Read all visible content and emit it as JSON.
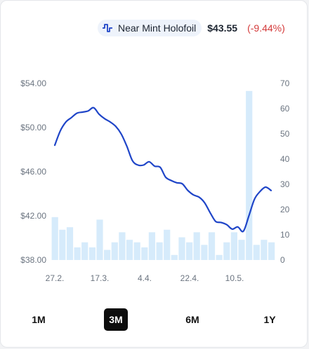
{
  "legend": {
    "icon": "activity-wave-icon",
    "label": "Near Mint Holofoil",
    "price": "$43.55",
    "change": "(-9.44%)",
    "change_color": "#d43a3a",
    "line_color": "#1f45c8"
  },
  "ranges": [
    {
      "label": "1M",
      "active": false
    },
    {
      "label": "3M",
      "active": true
    },
    {
      "label": "6M",
      "active": false
    },
    {
      "label": "1Y",
      "active": false
    }
  ],
  "chart_data": {
    "type": "line",
    "left_axis": {
      "ylim": [
        38,
        54
      ],
      "ticks": [
        "$38.00",
        "$42.00",
        "$46.00",
        "$50.00",
        "$54.00"
      ],
      "tick_values": [
        38,
        42,
        46,
        50,
        54
      ]
    },
    "right_axis": {
      "ylim": [
        0,
        70
      ],
      "ticks": [
        "0",
        "10",
        "20",
        "30",
        "40",
        "50",
        "60",
        "70"
      ],
      "tick_values": [
        0,
        10,
        20,
        30,
        40,
        50,
        60,
        70
      ]
    },
    "x_ticks": [
      "27.2.",
      "17.3.",
      "4.4.",
      "22.4.",
      "10.5."
    ],
    "grid": false,
    "series": [
      {
        "type": "line",
        "axis": "left",
        "color": "#1f45c8",
        "values": [
          48.4,
          49.7,
          50.5,
          50.9,
          51.3,
          51.4,
          51.5,
          51.8,
          51.2,
          50.8,
          50.5,
          50.1,
          49.4,
          48.3,
          47.0,
          46.6,
          46.6,
          46.9,
          46.5,
          46.4,
          45.5,
          45.2,
          45.0,
          44.9,
          44.3,
          43.9,
          43.7,
          43.2,
          42.3,
          41.5,
          41.4,
          41.2,
          40.8,
          41.0,
          40.6,
          42.0,
          43.5,
          44.2,
          44.6,
          44.3
        ]
      },
      {
        "type": "bar",
        "axis": "right",
        "color": "#d6ebfb",
        "values": [
          17,
          12,
          13,
          5,
          7,
          5,
          16,
          4,
          7,
          11,
          8,
          7,
          5,
          11,
          7,
          12,
          2,
          9,
          7,
          11,
          6,
          11,
          2,
          7,
          11,
          8,
          67,
          6,
          8,
          7
        ]
      }
    ]
  }
}
